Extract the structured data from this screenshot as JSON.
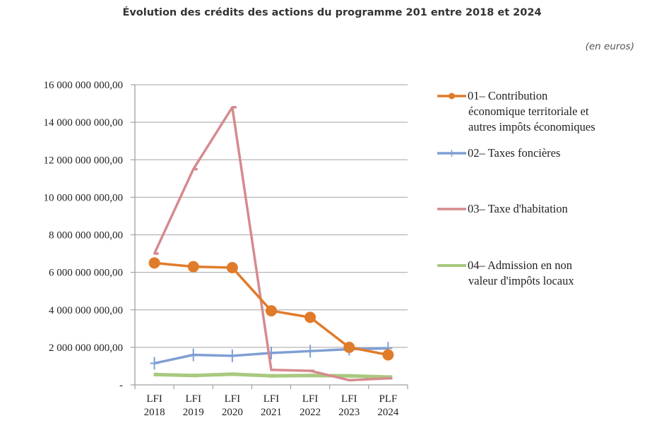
{
  "chart_data": {
    "type": "line",
    "title": "Évolution des crédits des actions du programme 201 entre 2018 et 2024",
    "unit_note": "(en euros)",
    "xlabel": "",
    "ylabel": "",
    "categories": [
      [
        "LFI",
        "2018"
      ],
      [
        "LFI",
        "2019"
      ],
      [
        "LFI",
        "2020"
      ],
      [
        "LFI",
        "2021"
      ],
      [
        "LFI",
        "2022"
      ],
      [
        "LFI",
        "2023"
      ],
      [
        "PLF",
        "2024"
      ]
    ],
    "ylim": [
      0,
      16000000000
    ],
    "yticks": [
      0,
      2000000000,
      4000000000,
      6000000000,
      8000000000,
      10000000000,
      12000000000,
      14000000000,
      16000000000
    ],
    "ytick_labels": [
      "-",
      "2 000 000 000,00",
      "4 000 000 000,00",
      "6 000 000 000,00",
      "8 000 000 000,00",
      "10 000 000 000,00",
      "12 000 000 000,00",
      "14 000 000 000,00",
      "16 000 000 000,00"
    ],
    "grid": true,
    "legend_position": "right",
    "series": [
      {
        "name": "01– Contribution économique territoriale et autres impôts économiques",
        "legend_lines": [
          "01– Contribution",
          "économique territoriale et",
          "autres impôts économiques"
        ],
        "color": "#E07B2A",
        "marker": "circle",
        "values": [
          6500000000,
          6300000000,
          6250000000,
          3950000000,
          3600000000,
          2000000000,
          1600000000
        ]
      },
      {
        "name": "02– Taxes foncières",
        "legend_lines": [
          "02– Taxes foncières"
        ],
        "color": "#7F9FD3",
        "marker": "plus",
        "values": [
          1150000000,
          1600000000,
          1550000000,
          1700000000,
          1800000000,
          1900000000,
          1950000000
        ]
      },
      {
        "name": "03– Taxe d'habitation",
        "legend_lines": [
          "03– Taxe d'habitation"
        ],
        "color": "#D68A8E",
        "marker": "dash",
        "values": [
          7000000000,
          11500000000,
          14800000000,
          800000000,
          750000000,
          250000000,
          350000000
        ]
      },
      {
        "name": "04– Admission en non valeur d'impôts locaux",
        "legend_lines": [
          "04– Admission en non",
          "valeur d'impôts locaux"
        ],
        "color": "#A8C97F",
        "marker": "dash",
        "values": [
          550000000,
          500000000,
          570000000,
          480000000,
          500000000,
          480000000,
          420000000
        ]
      }
    ]
  }
}
